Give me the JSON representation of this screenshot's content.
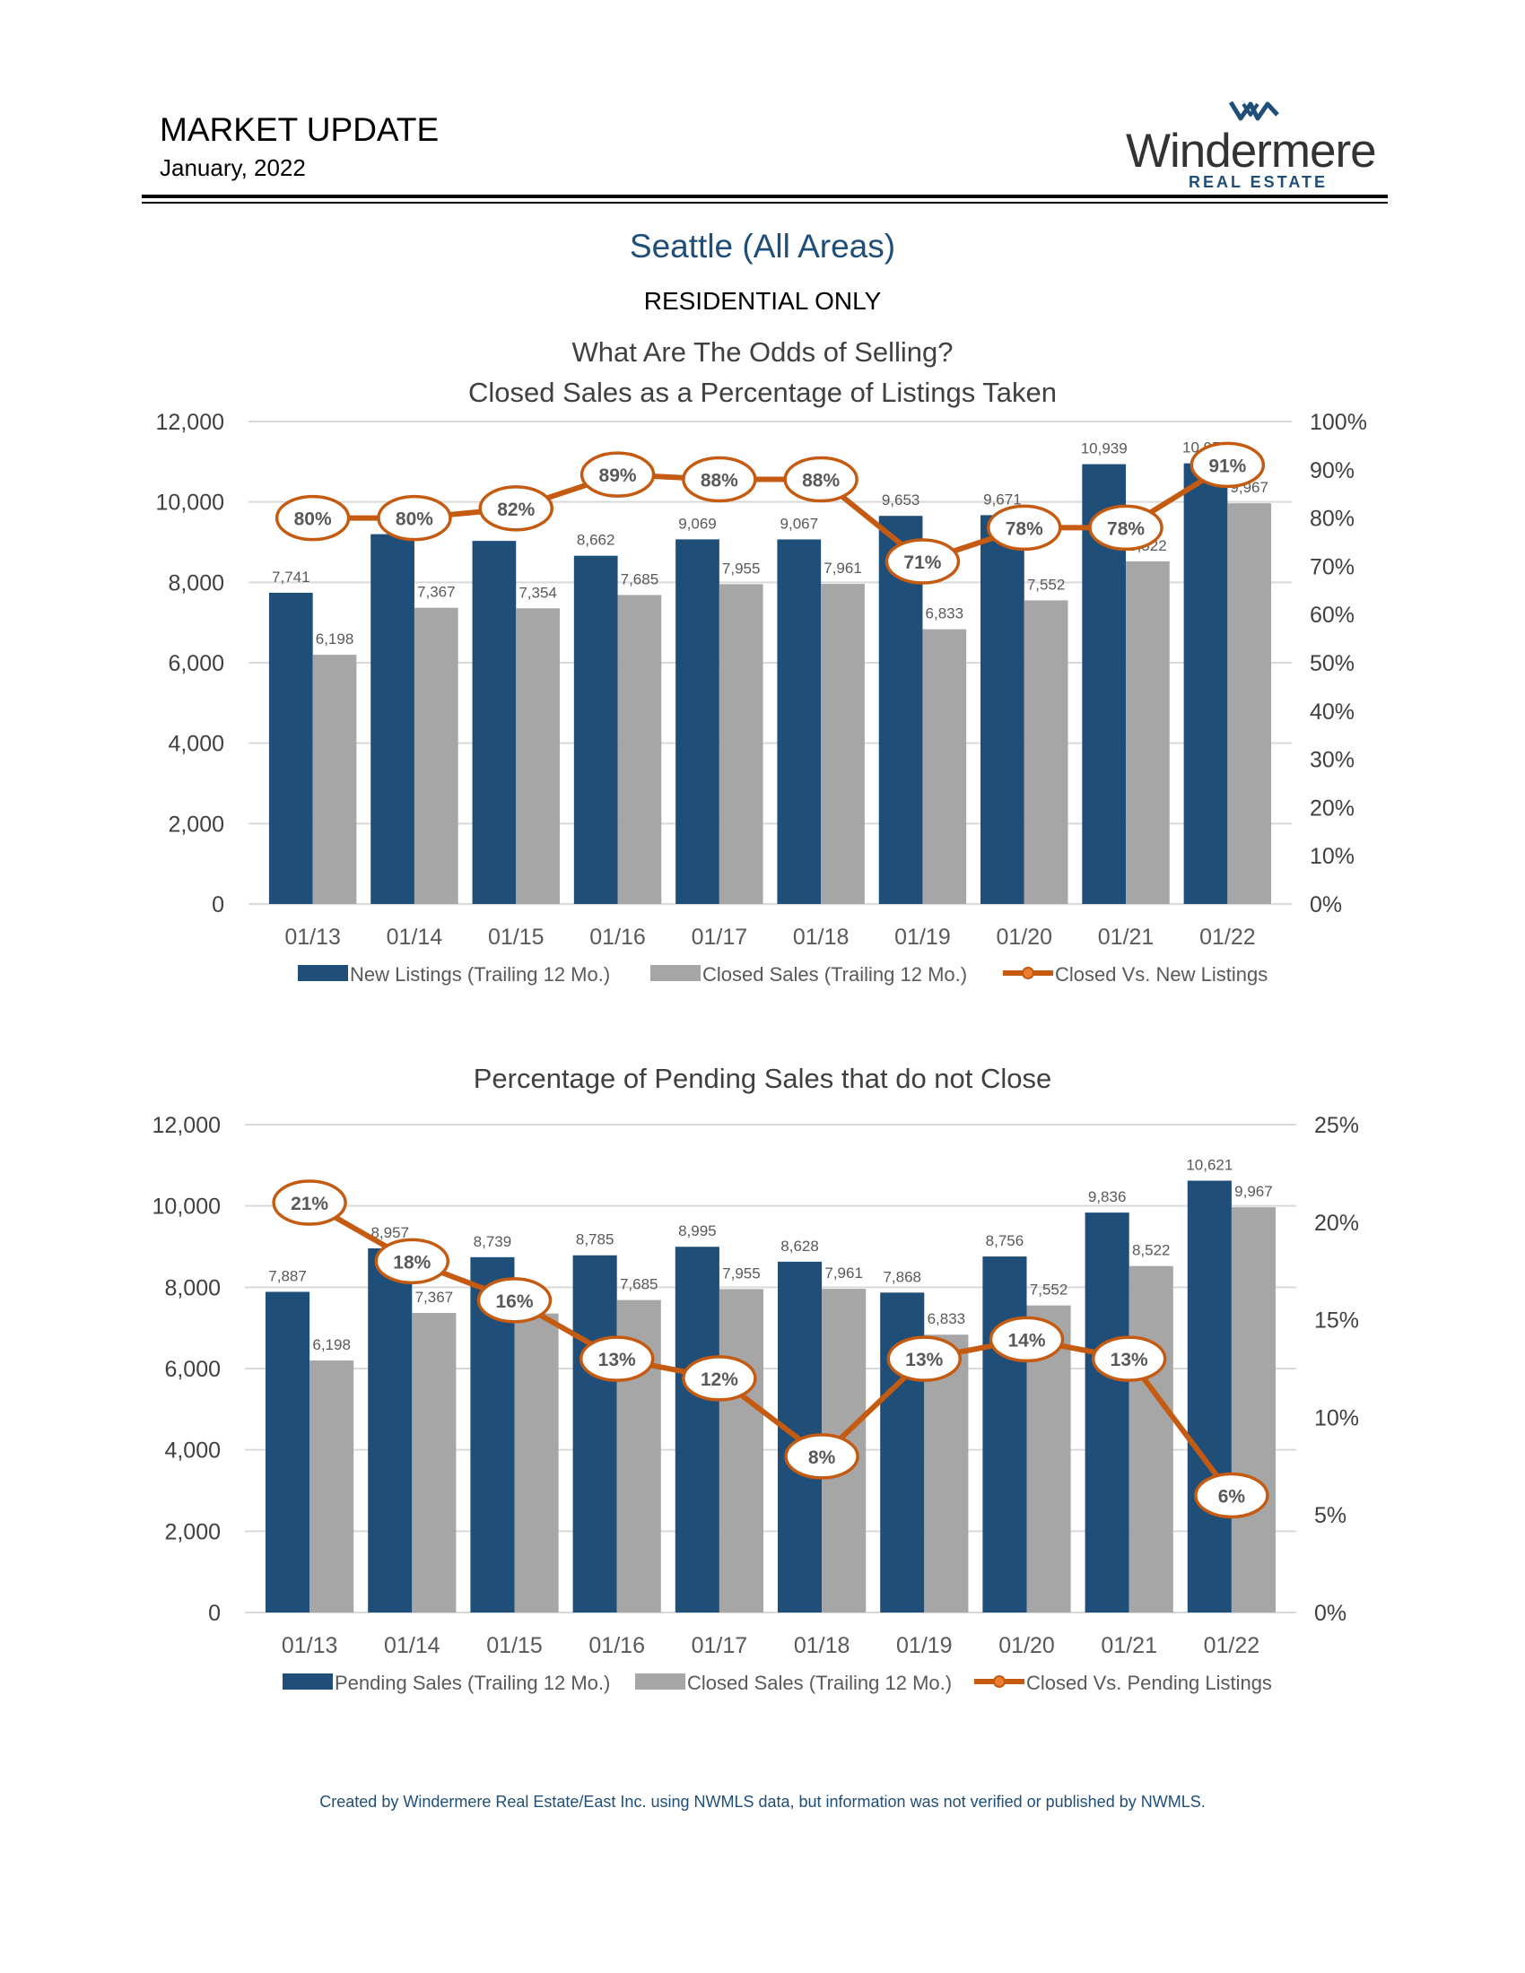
{
  "header": {
    "title": "MARKET UPDATE",
    "date": "January, 2022",
    "logo_word": "Windermere",
    "logo_sub": "REAL ESTATE"
  },
  "page": {
    "title": "Seattle (All Areas)",
    "subtitle": "RESIDENTIAL ONLY"
  },
  "colors": {
    "primary_bar": "#1f4e79",
    "secondary_bar": "#a6a6a6",
    "line": "#c55a11",
    "title_blue": "#1f4e79"
  },
  "chart_data": [
    {
      "type": "bar",
      "title_line1": "What Are The Odds of Selling?",
      "title_line2": "Closed Sales as a Percentage of Listings Taken",
      "categories": [
        "01/13",
        "01/14",
        "01/15",
        "01/16",
        "01/17",
        "01/18",
        "01/19",
        "01/20",
        "01/21",
        "01/22"
      ],
      "series": [
        {
          "name": "New Listings (Trailing 12 Mo.)",
          "kind": "bar",
          "axis": "left",
          "values": [
            7741,
            9198,
            9031,
            8662,
            9069,
            9067,
            9653,
            9671,
            10939,
            10959
          ],
          "labels": [
            "7,741",
            "",
            "",
            "8,662",
            "9,069",
            "9,067",
            "9,653",
            "9,671",
            "10,939",
            "10,959"
          ]
        },
        {
          "name": "Closed Sales (Trailing 12 Mo.)",
          "kind": "bar",
          "axis": "left",
          "values": [
            6198,
            7367,
            7354,
            7685,
            7955,
            7961,
            6833,
            7552,
            8522,
            9967
          ],
          "labels": [
            "6,198",
            "7,367",
            "7,354",
            "7,685",
            "7,955",
            "7,961",
            "6,833",
            "7,552",
            "8,522",
            "9,967"
          ]
        },
        {
          "name": "Closed Vs. New Listings",
          "kind": "line",
          "axis": "right",
          "values": [
            80,
            80,
            82,
            89,
            88,
            88,
            71,
            78,
            78,
            91
          ],
          "labels": [
            "80%",
            "80%",
            "82%",
            "89%",
            "88%",
            "88%",
            "71%",
            "78%",
            "78%",
            "91%"
          ]
        }
      ],
      "ylim_left": [
        0,
        12000
      ],
      "left_ticks": [
        "0",
        "2,000",
        "4,000",
        "6,000",
        "8,000",
        "10,000",
        "12,000"
      ],
      "ylim_right": [
        0,
        100
      ],
      "right_ticks": [
        "0%",
        "10%",
        "20%",
        "30%",
        "40%",
        "50%",
        "60%",
        "70%",
        "80%",
        "90%",
        "100%"
      ],
      "grid": true,
      "legend": "bottom"
    },
    {
      "type": "bar",
      "title_line1": "Percentage of Pending Sales that do not Close",
      "title_line2": "",
      "categories": [
        "01/13",
        "01/14",
        "01/15",
        "01/16",
        "01/17",
        "01/18",
        "01/19",
        "01/20",
        "01/21",
        "01/22"
      ],
      "series": [
        {
          "name": "Pending Sales (Trailing 12 Mo.)",
          "kind": "bar",
          "axis": "left",
          "values": [
            7887,
            8957,
            8739,
            8785,
            8995,
            8628,
            7868,
            8756,
            9836,
            10621
          ],
          "labels": [
            "7,887",
            "8,957",
            "8,739",
            "8,785",
            "8,995",
            "8,628",
            "7,868",
            "8,756",
            "9,836",
            "10,621"
          ]
        },
        {
          "name": "Closed Sales (Trailing 12 Mo.)",
          "kind": "bar",
          "axis": "left",
          "values": [
            6198,
            7367,
            7354,
            7685,
            7955,
            7961,
            6833,
            7552,
            8522,
            9967
          ],
          "labels": [
            "6,198",
            "7,367",
            "",
            "7,685",
            "7,955",
            "7,961",
            "6,833",
            "7,552",
            "8,522",
            "9,967"
          ]
        },
        {
          "name": "Closed Vs. Pending Listings",
          "kind": "line",
          "axis": "right",
          "values": [
            21,
            18,
            16,
            13,
            12,
            8,
            13,
            14,
            13,
            6
          ],
          "labels": [
            "21%",
            "18%",
            "16%",
            "13%",
            "12%",
            "8%",
            "13%",
            "14%",
            "13%",
            "6%"
          ]
        }
      ],
      "ylim_left": [
        0,
        12000
      ],
      "left_ticks": [
        "0",
        "2,000",
        "4,000",
        "6,000",
        "8,000",
        "10,000",
        "12,000"
      ],
      "ylim_right": [
        0,
        25
      ],
      "right_ticks": [
        "0%",
        "5%",
        "10%",
        "15%",
        "20%",
        "25%"
      ],
      "grid": true,
      "legend": "bottom"
    }
  ],
  "footer": {
    "note": "Created by Windermere Real Estate/East Inc. using NWMLS data, but information was not verified or published by NWMLS."
  }
}
